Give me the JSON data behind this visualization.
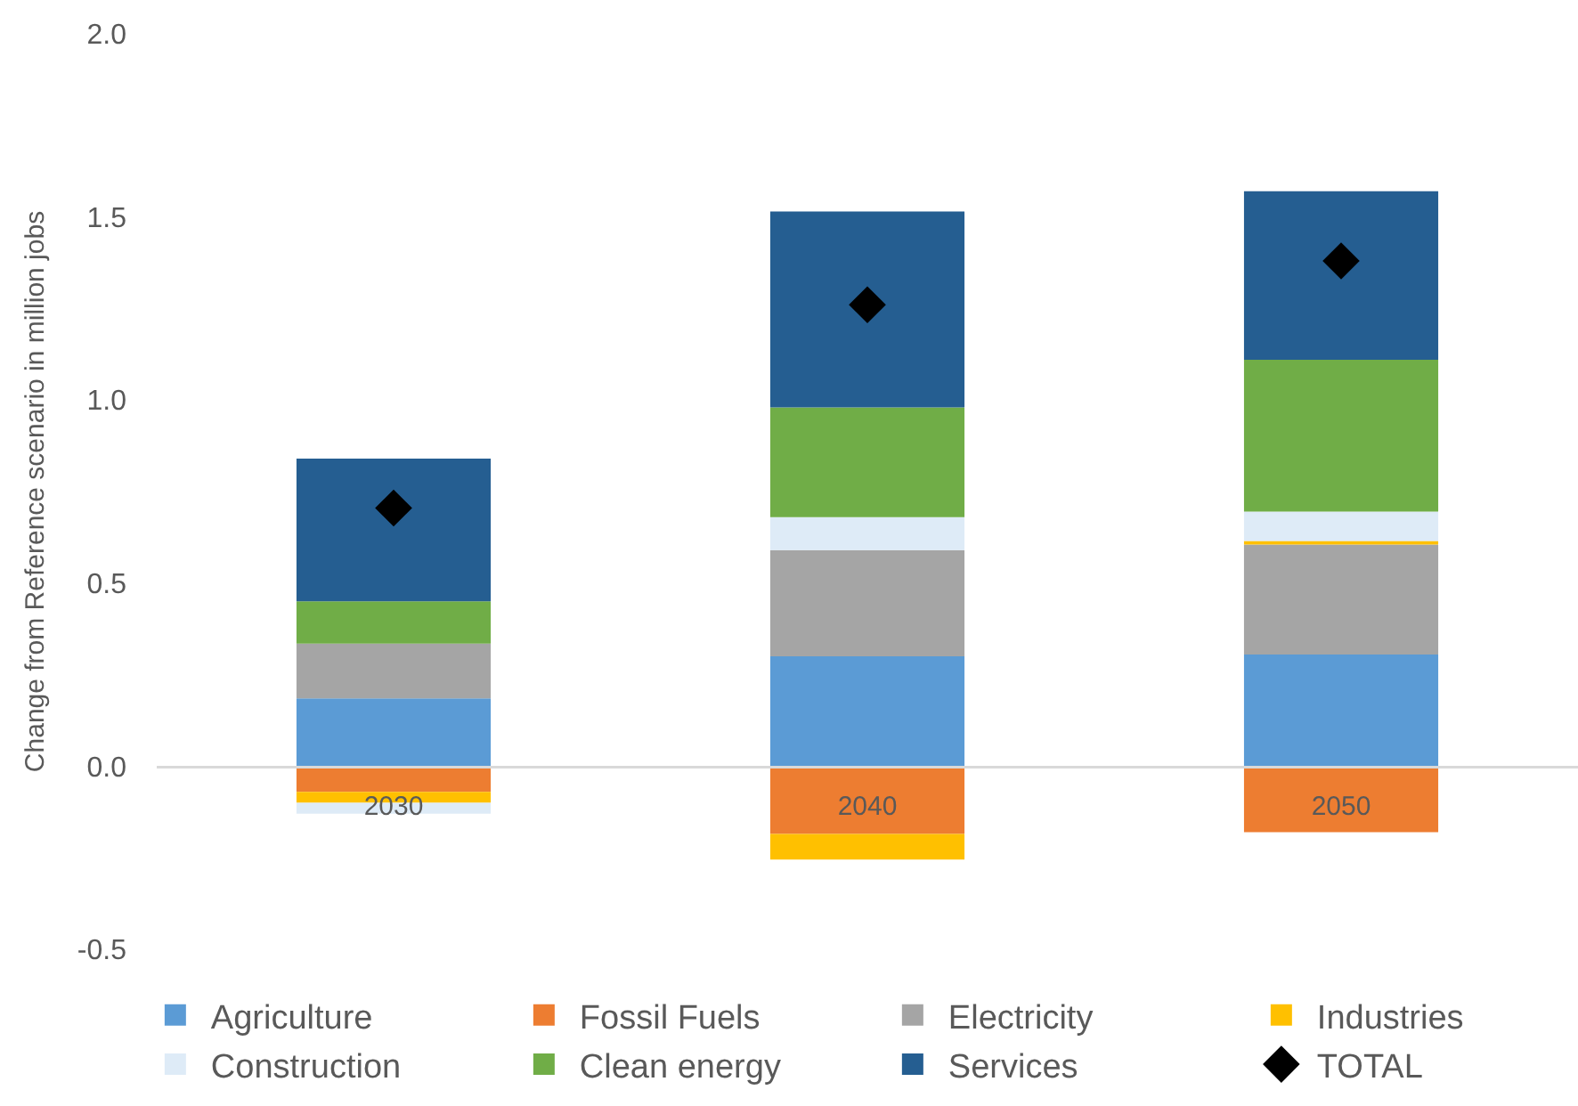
{
  "chart_data": {
    "type": "bar",
    "stacked": true,
    "ylabel": "Change from Reference scenario in million jobs",
    "categories": [
      "2030",
      "2040",
      "2050"
    ],
    "ylim": [
      -0.5,
      2.0
    ],
    "yticks": [
      -0.5,
      {
        "value": 0,
        "label": "0.0"
      },
      0.5,
      {
        "value": 1,
        "label": "1.0"
      },
      1.5,
      {
        "value": 2,
        "label": "2.0"
      }
    ],
    "grid": false,
    "legend": "bottom",
    "series": [
      {
        "name": "Agriculture",
        "color": "#5b9bd5",
        "values": [
          0.185,
          0.3,
          0.305
        ]
      },
      {
        "name": "Fossil Fuels",
        "color": "#ed7d31",
        "values": [
          -0.07,
          -0.185,
          -0.18
        ]
      },
      {
        "name": "Electricity",
        "color": "#a5a5a5",
        "values": [
          0.15,
          0.29,
          0.3
        ]
      },
      {
        "name": "Industries",
        "color": "#ffc000",
        "values": [
          -0.03,
          -0.07,
          0.01
        ]
      },
      {
        "name": "Construction",
        "color": "#deebf7",
        "values": [
          -0.03,
          0.09,
          0.08
        ]
      },
      {
        "name": "Clean energy",
        "color": "#70ad47",
        "values": [
          0.115,
          0.3,
          0.415
        ]
      },
      {
        "name": "Services",
        "color": "#255e91",
        "values": [
          0.39,
          0.535,
          0.46
        ]
      },
      {
        "name": "TOTAL",
        "type": "scatter",
        "marker": "diamond",
        "color": "#000000",
        "values": [
          0.705,
          1.26,
          1.38
        ]
      }
    ]
  }
}
